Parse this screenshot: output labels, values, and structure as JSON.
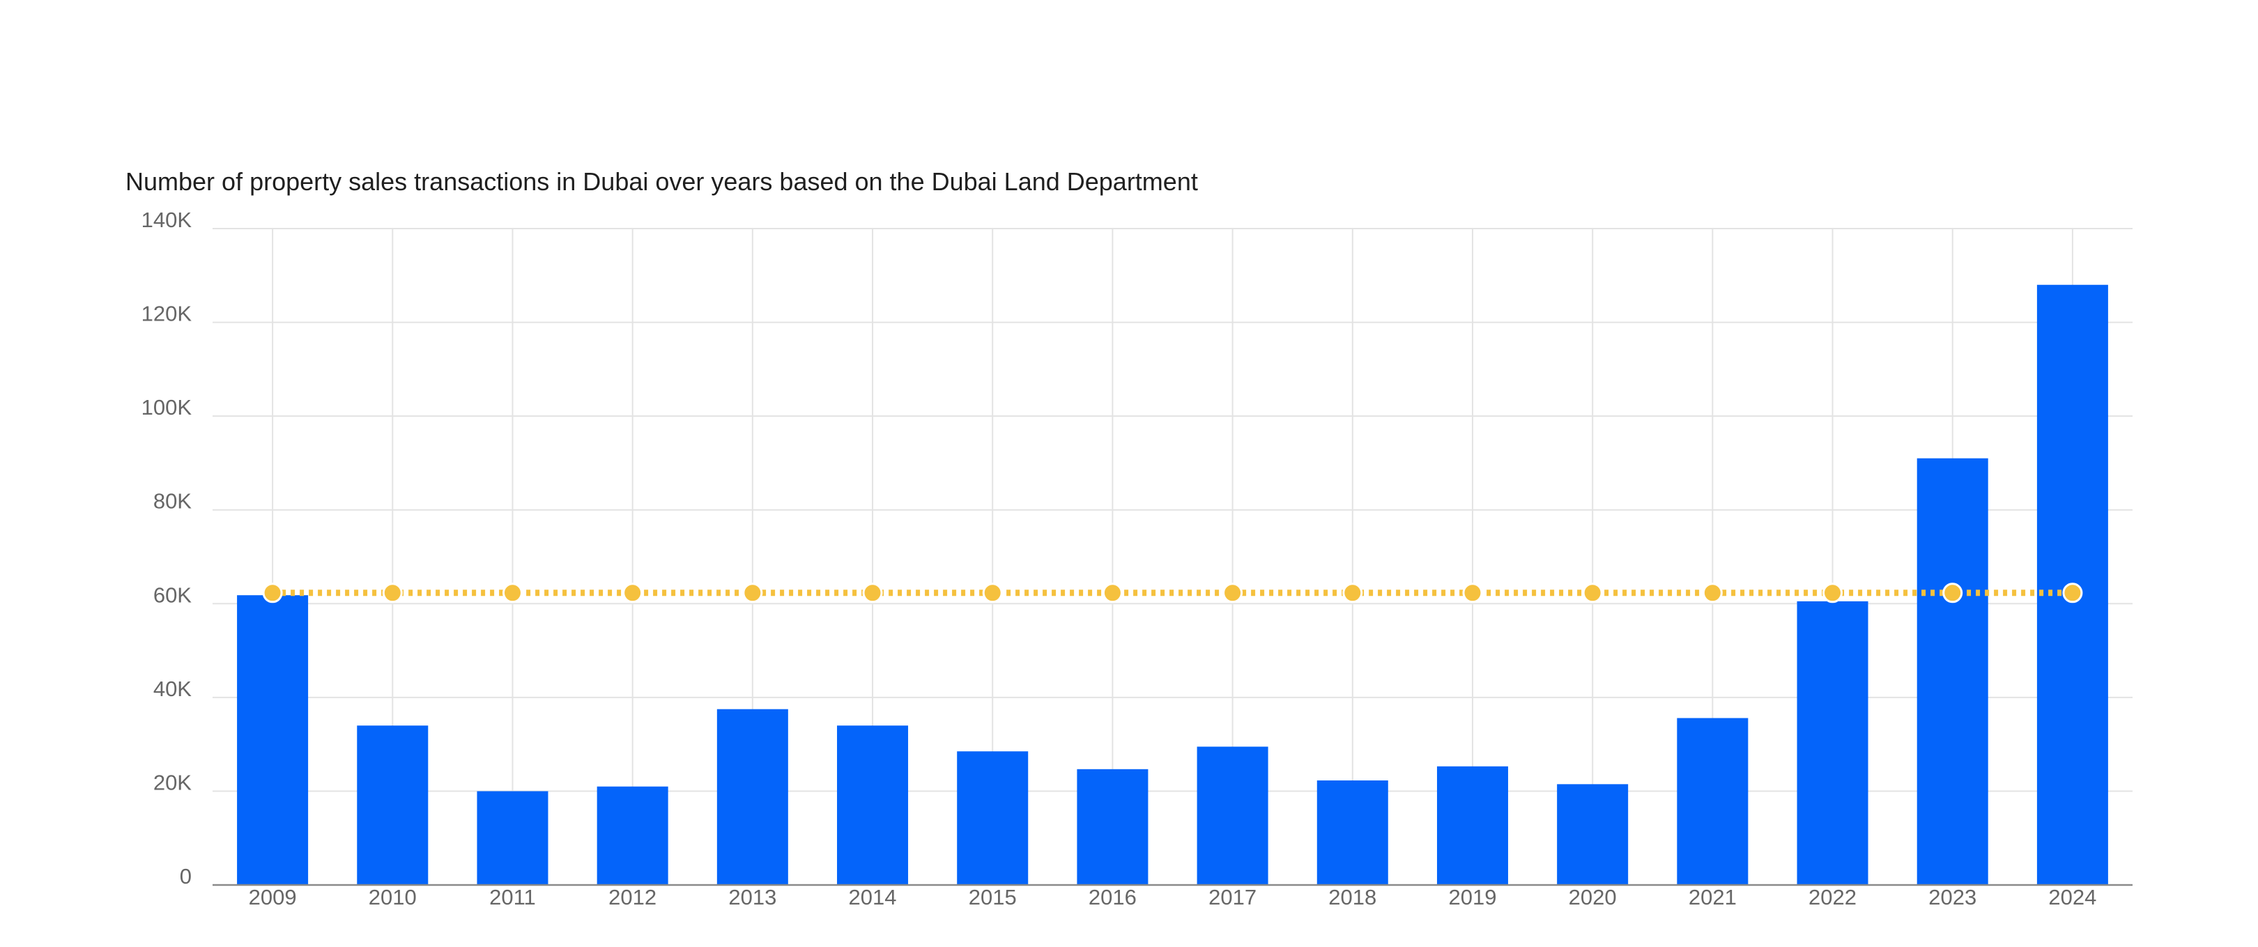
{
  "chart_data": {
    "type": "bar",
    "title": "Number of property sales transactions in Dubai over years based on the Dubai Land Department",
    "xlabel": "",
    "ylabel": "",
    "categories": [
      "2009",
      "2010",
      "2011",
      "2012",
      "2013",
      "2014",
      "2015",
      "2016",
      "2017",
      "2018",
      "2019",
      "2020",
      "2021",
      "2022",
      "2023",
      "2024"
    ],
    "series": [
      {
        "type": "bar",
        "color": "#0464fa",
        "values": [
          61800,
          34000,
          20000,
          21000,
          37500,
          34000,
          28500,
          24700,
          29500,
          22300,
          25300,
          21500,
          35600,
          60500,
          91000,
          128000
        ]
      },
      {
        "type": "line",
        "style": "dotted",
        "markers": true,
        "color": "#f5c13e",
        "values": [
          62300,
          62300,
          62300,
          62300,
          62300,
          62300,
          62300,
          62300,
          62300,
          62300,
          62300,
          62300,
          62300,
          62300,
          62300,
          62300
        ]
      }
    ],
    "ylim": [
      0,
      140000
    ],
    "yticks": [
      0,
      20000,
      40000,
      60000,
      80000,
      100000,
      120000,
      140000
    ],
    "ytick_labels": [
      "0",
      "20K",
      "40K",
      "60K",
      "80K",
      "100K",
      "120K",
      "140K"
    ],
    "grid": true,
    "legend": "none"
  }
}
